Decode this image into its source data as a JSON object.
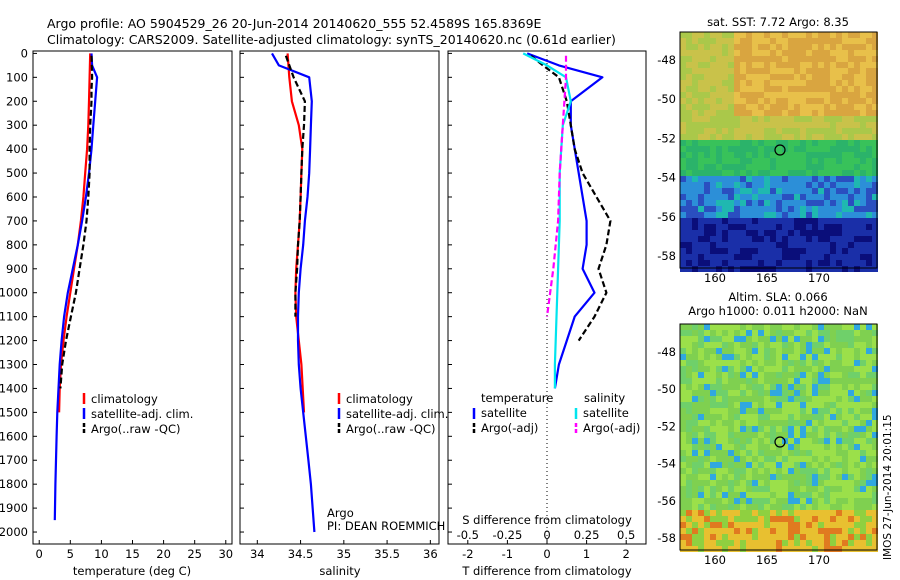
{
  "title": {
    "line1": "Argo profile: AO 5904529_26 20-Jun-2014 20140620_555 52.4589S 165.8369E",
    "line2": "Climatology: CARS2009. Satellite-adjusted climatology: synTS_20140620.nc (0.61d earlier)"
  },
  "colors": {
    "climatology": "#ff0000",
    "satellite": "#0000ff",
    "argo": "#000000",
    "sat_salinity": "#00e5ee",
    "argo_adj_salinity": "#ff00ff"
  },
  "depth_ticks": [
    "0",
    "100",
    "200",
    "300",
    "400",
    "500",
    "600",
    "700",
    "800",
    "900",
    "1000",
    "1100",
    "1200",
    "1300",
    "1400",
    "1500",
    "1600",
    "1700",
    "1800",
    "1900",
    "2000"
  ],
  "panels": {
    "temperature": {
      "xlabel": "temperature (deg C)",
      "xticks": [
        "0",
        "5",
        "10",
        "15",
        "20",
        "25",
        "30"
      ],
      "legend": [
        "climatology",
        "satellite-adj. clim.",
        "Argo(..raw -QC)"
      ]
    },
    "salinity": {
      "xlabel": "salinity",
      "xticks": [
        "34",
        "34.5",
        "35",
        "35.5",
        "36"
      ],
      "legend": [
        "climatology",
        "satellite-adj. clim.",
        "Argo(..raw -QC)"
      ],
      "note1": "Argo",
      "note2": "PI: DEAN ROEMMICH"
    },
    "difference": {
      "xlabel": "T difference from climatology",
      "xlabel_top": "S difference from climatology",
      "xticks": [
        "-2",
        "-1",
        "0",
        "1",
        "2"
      ],
      "xticks_top": [
        "-0.5",
        "-0.25",
        "0",
        "0.25",
        "0.5"
      ],
      "legend_head_t": "temperature",
      "legend_head_s": "salinity",
      "legend_t": [
        "satellite",
        "Argo(-adj)"
      ],
      "legend_s": [
        "satellite",
        "Argo(-adj)"
      ]
    }
  },
  "maps": {
    "sst": {
      "title": "sat. SST: 7.72 Argo: 8.35",
      "yticks": [
        "-48",
        "-50",
        "-52",
        "-54",
        "-56",
        "-58"
      ],
      "xticks": [
        "160",
        "165",
        "170"
      ]
    },
    "sla": {
      "title1": "Altim. SLA: 0.066",
      "title2": "Argo h1000: 0.011 h2000: NaN",
      "yticks": [
        "-48",
        "-50",
        "-52",
        "-54",
        "-56",
        "-58"
      ],
      "xticks": [
        "160",
        "165",
        "170"
      ]
    }
  },
  "footer": "IMOS 27-Jun-2014 20:01:15",
  "chart_data": [
    {
      "type": "line",
      "title": "",
      "xlabel": "temperature (deg C)",
      "ylabel": "",
      "xlim": [
        -1,
        31
      ],
      "ylim": [
        2050,
        0
      ],
      "series": [
        {
          "name": "climatology",
          "color": "#ff0000",
          "x": [
            8.2,
            8.1,
            8.0,
            7.9,
            7.7,
            7.4,
            7.1,
            6.7,
            6.2,
            5.6,
            5.0,
            4.4,
            3.9,
            3.5,
            3.3,
            3.2
          ],
          "y": [
            0,
            100,
            200,
            300,
            400,
            500,
            600,
            700,
            800,
            900,
            1000,
            1100,
            1200,
            1300,
            1400,
            1500
          ]
        },
        {
          "name": "satellite-adj. clim.",
          "color": "#0000ff",
          "x": [
            8.4,
            8.5,
            9.3,
            9.0,
            8.7,
            8.4,
            8.0,
            7.5,
            6.9,
            6.2,
            5.4,
            4.6,
            4.0,
            3.6,
            3.3,
            3.1,
            2.9,
            2.8,
            2.7,
            2.6,
            2.5
          ],
          "y": [
            0,
            50,
            100,
            200,
            300,
            400,
            500,
            600,
            700,
            800,
            900,
            1000,
            1100,
            1200,
            1300,
            1400,
            1500,
            1600,
            1700,
            1800,
            1950
          ]
        },
        {
          "name": "Argo(..raw -QC)",
          "color": "#000000",
          "x": [
            8.4,
            8.5,
            8.4,
            8.4,
            8.2,
            8.1,
            8.1,
            7.9,
            7.6,
            7.1,
            6.5,
            5.9,
            5.1,
            4.3,
            3.7,
            3.4
          ],
          "y": [
            10,
            100,
            150,
            200,
            300,
            400,
            500,
            600,
            700,
            800,
            900,
            1000,
            1100,
            1200,
            1300,
            1400
          ]
        }
      ]
    },
    {
      "type": "line",
      "title": "",
      "xlabel": "salinity",
      "ylabel": "",
      "xlim": [
        33.8,
        36.1
      ],
      "ylim": [
        2050,
        0
      ],
      "series": [
        {
          "name": "climatology",
          "color": "#ff0000",
          "x": [
            34.35,
            34.37,
            34.4,
            34.48,
            34.52,
            34.51,
            34.5,
            34.49,
            34.47,
            34.45,
            34.44,
            34.45,
            34.48,
            34.51,
            34.54
          ],
          "y": [
            0,
            100,
            200,
            300,
            400,
            500,
            600,
            700,
            800,
            900,
            1000,
            1100,
            1200,
            1300,
            1500
          ]
        },
        {
          "name": "satellite-adj. clim.",
          "color": "#0000ff",
          "x": [
            34.17,
            34.25,
            34.6,
            34.63,
            34.62,
            34.61,
            34.6,
            34.58,
            34.55,
            34.53,
            34.5,
            34.48,
            34.47,
            34.47,
            34.48,
            34.5,
            34.53,
            34.56,
            34.59,
            34.62,
            34.66
          ],
          "y": [
            0,
            50,
            100,
            200,
            300,
            400,
            500,
            600,
            700,
            800,
            900,
            1000,
            1100,
            1200,
            1300,
            1400,
            1500,
            1600,
            1700,
            1800,
            2000
          ]
        },
        {
          "name": "Argo(..raw -QC)",
          "color": "#000000",
          "x": [
            34.33,
            34.42,
            34.55,
            34.54,
            34.52,
            34.51,
            34.5,
            34.49,
            34.47,
            34.46,
            34.44,
            34.44
          ],
          "y": [
            10,
            100,
            200,
            300,
            400,
            500,
            600,
            700,
            800,
            900,
            1000,
            1100
          ]
        }
      ]
    },
    {
      "type": "line",
      "title": "",
      "xlabel": "T difference from climatology",
      "ylabel": "",
      "xlim": [
        -2.5,
        2.5
      ],
      "ylim": [
        2050,
        0
      ],
      "series": [
        {
          "name": "temperature satellite",
          "color": "#0000ff",
          "x": [
            -0.5,
            0.3,
            1.4,
            1.0,
            0.6,
            0.6,
            0.8,
            1.0,
            1.0,
            0.9,
            1.2,
            0.7,
            0.5,
            0.3,
            0.2
          ],
          "y": [
            0,
            50,
            100,
            150,
            200,
            300,
            500,
            700,
            800,
            900,
            1000,
            1100,
            1200,
            1300,
            1400
          ]
        },
        {
          "name": "temperature Argo(-adj)",
          "color": "#000000",
          "x": [
            -0.4,
            -0.1,
            0.3,
            0.5,
            0.6,
            0.7,
            0.9,
            1.6,
            1.5,
            1.3,
            1.5,
            1.2,
            0.8
          ],
          "y": [
            10,
            50,
            100,
            200,
            300,
            400,
            500,
            700,
            800,
            900,
            1000,
            1100,
            1200
          ]
        },
        {
          "name": "salinity satellite",
          "color": "#00e5ee",
          "x": [
            -0.15,
            0.0,
            0.12,
            0.15,
            0.1,
            0.08,
            0.08,
            0.07,
            0.06,
            0.05,
            0.05
          ],
          "y": [
            0,
            50,
            100,
            200,
            300,
            500,
            700,
            900,
            1100,
            1300,
            1400
          ]
        },
        {
          "name": "salinity Argo(-adj)",
          "color": "#ff00ff",
          "x": [
            0.12,
            0.12,
            0.1,
            0.08,
            0.07,
            0.04,
            0.0
          ],
          "y": [
            10,
            100,
            300,
            500,
            700,
            900,
            1100
          ]
        }
      ]
    }
  ]
}
